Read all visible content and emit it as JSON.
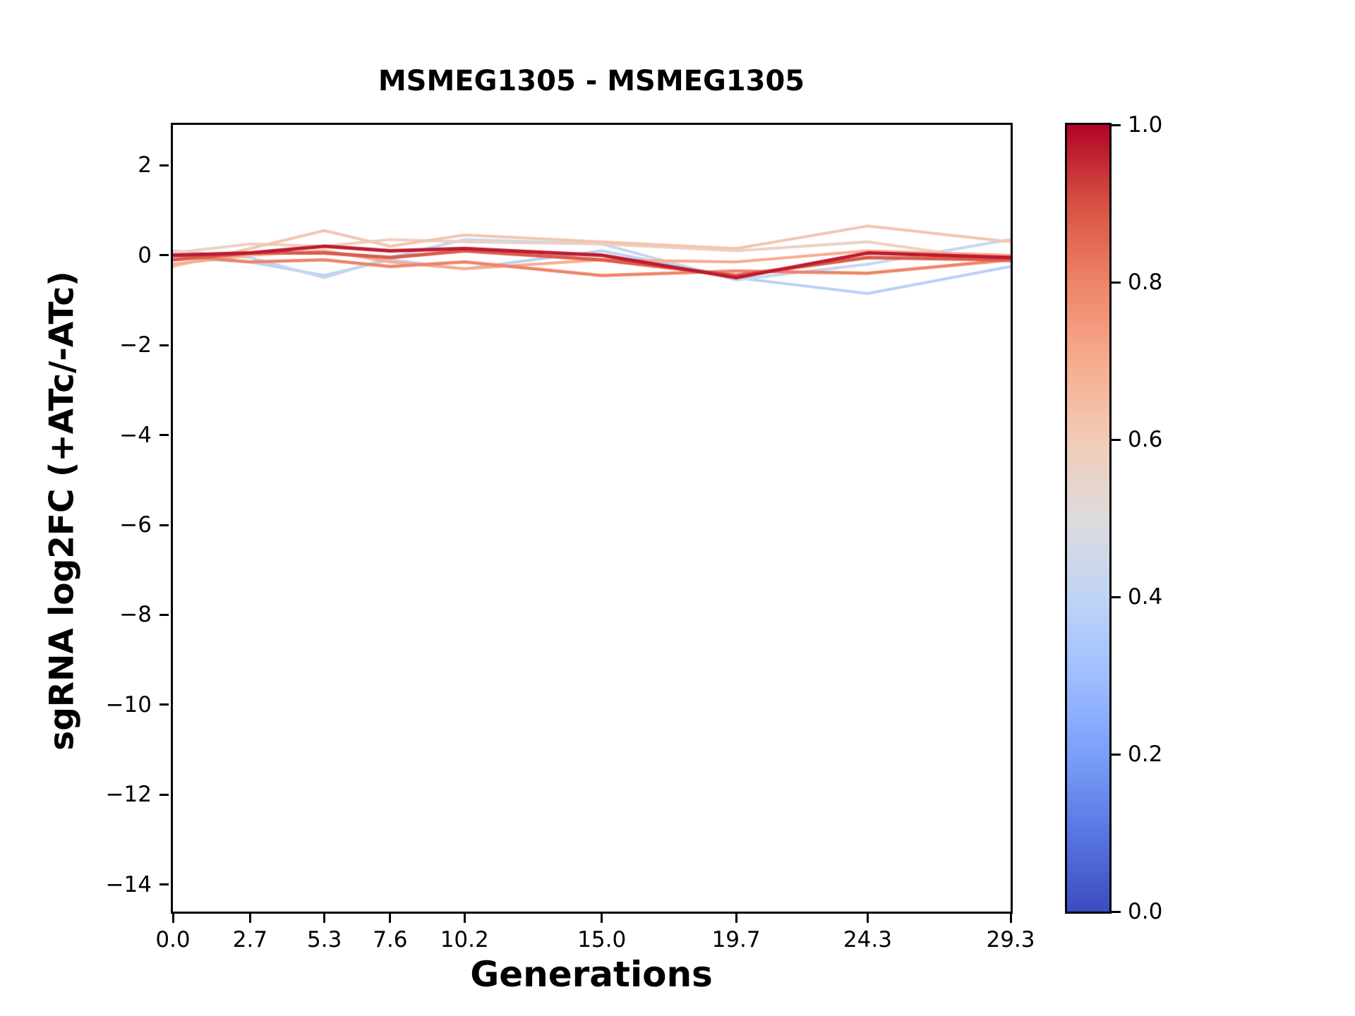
{
  "chart_data": {
    "type": "line",
    "title": "MSMEG1305 - MSMEG1305",
    "xlabel": "Generations",
    "ylabel": "sgRNA log2FC (+ATc/-ATc)",
    "xlim": [
      0.0,
      29.3
    ],
    "ylim": [
      -14.6,
      2.9
    ],
    "grid": false,
    "legend_position": "none",
    "x": [
      0.0,
      2.7,
      5.3,
      7.6,
      10.2,
      15.0,
      19.7,
      24.3,
      29.3
    ],
    "xticks": {
      "values": [
        0.0,
        2.7,
        5.3,
        7.6,
        10.2,
        15.0,
        19.7,
        24.3,
        29.3
      ],
      "labels": [
        "0.0",
        "2.7",
        "5.3",
        "7.6",
        "10.2",
        "15.0",
        "19.7",
        "24.3",
        "29.3"
      ]
    },
    "yticks": {
      "values": [
        2,
        0,
        -2,
        -4,
        -6,
        -8,
        -10,
        -12,
        -14
      ],
      "labels": [
        "2",
        "0",
        "−2",
        "−4",
        "−6",
        "−8",
        "−10",
        "−12",
        "−14"
      ]
    },
    "series": [
      {
        "cmap_value": 0.38,
        "linewidth": 4,
        "values": [
          -0.05,
          -0.15,
          -0.45,
          -0.1,
          -0.3,
          0.1,
          -0.5,
          -0.85,
          -0.25
        ]
      },
      {
        "cmap_value": 0.42,
        "linewidth": 4,
        "values": [
          0.1,
          -0.05,
          -0.5,
          -0.05,
          0.35,
          0.25,
          -0.55,
          -0.2,
          0.35
        ]
      },
      {
        "cmap_value": 0.57,
        "linewidth": 4,
        "values": [
          0.05,
          0.25,
          0.2,
          0.35,
          0.3,
          0.25,
          0.1,
          0.3,
          -0.15
        ]
      },
      {
        "cmap_value": 0.62,
        "linewidth": 4,
        "values": [
          -0.25,
          0.15,
          0.55,
          0.2,
          0.45,
          0.3,
          0.15,
          0.65,
          0.3
        ]
      },
      {
        "cmap_value": 0.7,
        "linewidth": 4,
        "values": [
          -0.2,
          0.0,
          0.1,
          -0.15,
          -0.3,
          -0.1,
          -0.15,
          0.1,
          0.0
        ]
      },
      {
        "cmap_value": 0.8,
        "linewidth": 4.5,
        "values": [
          0.0,
          -0.15,
          -0.1,
          -0.25,
          -0.15,
          -0.45,
          -0.35,
          -0.4,
          -0.1
        ]
      },
      {
        "cmap_value": 0.88,
        "linewidth": 5,
        "values": [
          -0.1,
          0.05,
          0.05,
          -0.05,
          0.1,
          -0.1,
          -0.45,
          -0.05,
          -0.1
        ]
      },
      {
        "cmap_value": 0.97,
        "linewidth": 5,
        "values": [
          0.0,
          0.05,
          0.2,
          0.1,
          0.15,
          0.0,
          -0.5,
          0.05,
          -0.05
        ]
      }
    ],
    "colorbar": {
      "min": 0.0,
      "max": 1.0,
      "colormap": "coolwarm",
      "ticks": {
        "values": [
          1.0,
          0.8,
          0.6,
          0.4,
          0.2,
          0.0
        ],
        "labels": [
          "1.0",
          "0.8",
          "0.6",
          "0.4",
          "0.2",
          "0.0"
        ]
      },
      "stops": [
        [
          0.0,
          "#3b4cc0"
        ],
        [
          0.1,
          "#5977e3"
        ],
        [
          0.2,
          "#7b9ff9"
        ],
        [
          0.3,
          "#9ebeff"
        ],
        [
          0.4,
          "#c0d4f5"
        ],
        [
          0.5,
          "#dddcdc"
        ],
        [
          0.6,
          "#f2cbb7"
        ],
        [
          0.7,
          "#f7ac8e"
        ],
        [
          0.8,
          "#ee8468"
        ],
        [
          0.9,
          "#d65244"
        ],
        [
          1.0,
          "#b40426"
        ]
      ]
    }
  }
}
